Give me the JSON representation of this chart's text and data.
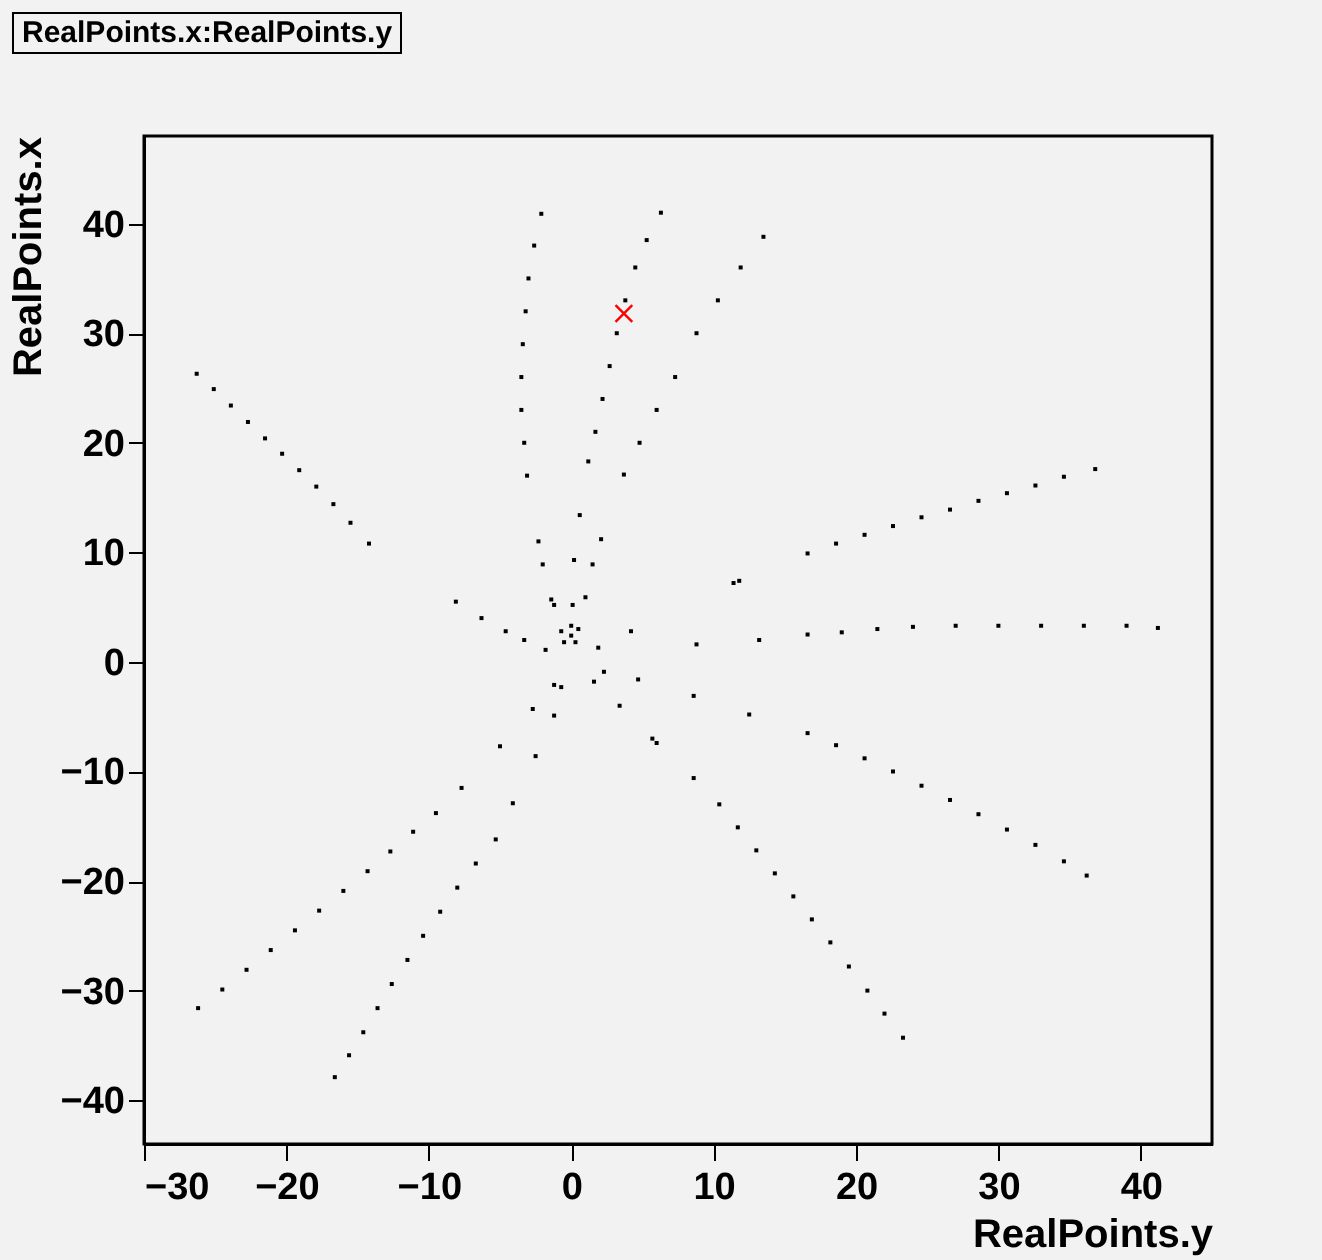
{
  "chart_data": {
    "type": "scatter",
    "title": "RealPoints.x:RealPoints.y",
    "xlabel": "RealPoints.y",
    "ylabel": "RealPoints.x",
    "xlim": [
      -30,
      45
    ],
    "ylim": [
      -44,
      48
    ],
    "xticks": [
      -30,
      -20,
      -10,
      0,
      10,
      20,
      30,
      40
    ],
    "yticks": [
      -40,
      -30,
      -20,
      -10,
      0,
      10,
      20,
      30,
      40
    ],
    "grid": false,
    "series": [
      {
        "color": "#000000",
        "marker": "square",
        "x": [
          -26.3,
          -25.1,
          -23.9,
          -22.7,
          -21.5,
          -20.3,
          -19.1,
          -17.9,
          -16.7,
          -15.5,
          -14.2,
          -3.1,
          -3.3,
          -3.5,
          -3.5,
          -3.4,
          -3.2,
          -3.0,
          -2.6,
          -2.1,
          1.2,
          1.7,
          2.2,
          2.7,
          3.2,
          3.8,
          4.5,
          5.3,
          6.3,
          3.7,
          4.8,
          6.0,
          7.3,
          8.8,
          10.3,
          11.9,
          13.5,
          16.6,
          18.6,
          20.6,
          22.6,
          24.6,
          26.6,
          28.6,
          30.6,
          32.6,
          34.6,
          36.8,
          16.6,
          19,
          21.5,
          24,
          27,
          30,
          33,
          36,
          39,
          41.2,
          16.6,
          18.6,
          20.6,
          22.6,
          24.6,
          26.6,
          28.6,
          30.6,
          32.6,
          34.6,
          36.2,
          10.4,
          11.7,
          13.0,
          14.3,
          15.6,
          16.9,
          18.2,
          19.5,
          20.8,
          22.0,
          23.3,
          -26.2,
          -24.5,
          -22.8,
          -21.1,
          -19.4,
          -17.7,
          -16.0,
          -14.3,
          -12.7,
          -11.1,
          -9.5,
          -16.6,
          -15.6,
          -14.6,
          -13.6,
          -12.6,
          -11.5,
          -10.4,
          -9.2,
          -8.0,
          -6.7,
          -5.3,
          0.6,
          -2.3,
          2.1,
          -2.0,
          0.2,
          1.5,
          11.8,
          11.4,
          -8.1,
          -1.4,
          -1.2,
          0.1,
          1.0,
          -6.3,
          -4.6,
          -3.3,
          -0.7,
          0.0,
          0.5,
          0.0,
          -0.5,
          0.3,
          -1.8,
          1.9,
          4.2,
          8.8,
          13.2,
          2.3,
          -1.2,
          -0.7,
          1.6,
          4.7,
          8.6,
          -2.7,
          -1.2,
          3.4,
          12.5,
          5.7,
          6.0,
          -5.0,
          -2.5,
          -7.7,
          8.6,
          -4.1
        ],
        "values": [
          26.3,
          24.9,
          23.4,
          21.9,
          20.4,
          19.0,
          17.5,
          16.0,
          14.4,
          12.7,
          10.8,
          17.0,
          20.0,
          23.0,
          26.0,
          29.0,
          32.0,
          35.0,
          38.0,
          40.9,
          18.3,
          21,
          24,
          27,
          30,
          33,
          36,
          38.5,
          41,
          17.1,
          20,
          23,
          26,
          30,
          33,
          36,
          38.8,
          9.9,
          10.8,
          11.6,
          12.4,
          13.2,
          13.9,
          14.7,
          15.4,
          16.1,
          16.9,
          17.6,
          2.5,
          2.7,
          3.0,
          3.2,
          3.3,
          3.3,
          3.3,
          3.3,
          3.3,
          3.1,
          -6.5,
          -7.6,
          -8.8,
          -10.0,
          -11.3,
          -12.6,
          -13.9,
          -15.3,
          -16.7,
          -18.2,
          -19.5,
          -13.0,
          -15.1,
          -17.2,
          -19.3,
          -21.4,
          -23.5,
          -25.6,
          -27.8,
          -30.0,
          -32.1,
          -34.3,
          -31.6,
          -29.9,
          -28.1,
          -26.3,
          -24.5,
          -22.7,
          -20.9,
          -19.1,
          -17.3,
          -15.5,
          -13.8,
          -37.9,
          -35.9,
          -33.8,
          -31.6,
          -29.4,
          -27.2,
          -25.0,
          -22.8,
          -20.6,
          -18.4,
          -16.2,
          13.4,
          11.0,
          11.2,
          8.9,
          9.3,
          8.9,
          7.4,
          7.2,
          5.5,
          5.7,
          5.2,
          5.2,
          5.9,
          4.0,
          2.8,
          2.0,
          2.8,
          3.3,
          3.0,
          2.4,
          1.8,
          1.8,
          1.1,
          1.3,
          2.8,
          1.6,
          2.0,
          -0.9,
          -2.1,
          -2.3,
          -1.8,
          -1.6,
          -3.1,
          -4.3,
          -4.9,
          -4.0,
          -4.8,
          -7.0,
          -7.4,
          -7.7,
          -8.6,
          -11.5,
          -10.6,
          -12.9
        ]
      },
      {
        "color": "#ff0000",
        "marker": "cross",
        "x": [
          3.7
        ],
        "values": [
          31.8
        ]
      }
    ]
  }
}
